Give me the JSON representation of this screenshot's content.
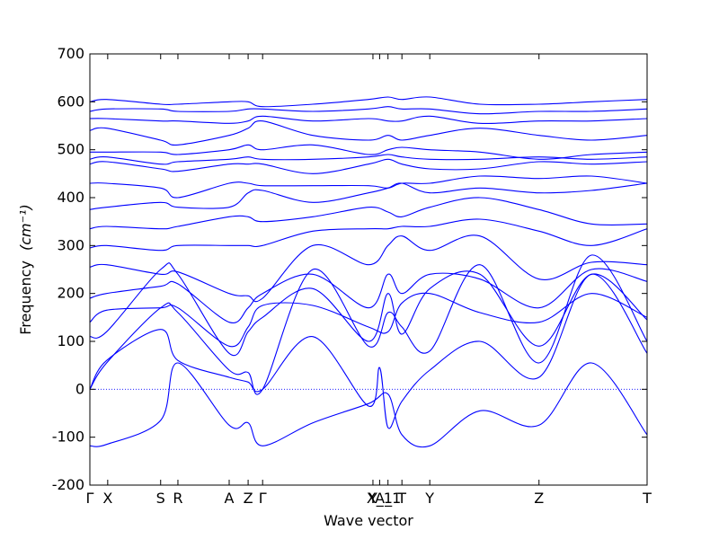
{
  "chart_data": {
    "type": "line",
    "title": "",
    "xlabel": "Wave vector",
    "ylabel": "Frequency",
    "ylabel_unit": "(cm⁻¹)",
    "ylim": [
      -200,
      700
    ],
    "yticks": [
      -200,
      -100,
      0,
      100,
      200,
      300,
      400,
      500,
      600,
      700
    ],
    "xlim": [
      0,
      1
    ],
    "grid": false,
    "legend": "none",
    "zero_line": true,
    "line_color": "#0000ff",
    "high_symmetry_points": [
      {
        "label": "Γ",
        "x": 0.0
      },
      {
        "label": "X",
        "x": 0.032
      },
      {
        "label": "S",
        "x": 0.127
      },
      {
        "label": "R",
        "x": 0.158
      },
      {
        "label": "A",
        "x": 0.25
      },
      {
        "label": "Z",
        "x": 0.284
      },
      {
        "label": "Γ",
        "x": 0.31
      },
      {
        "label": "Y",
        "x": 0.508
      },
      {
        "label": "X_1",
        "x": 0.52
      },
      {
        "label": "A_1",
        "x": 0.535
      },
      {
        "label": "T",
        "x": 0.56
      },
      {
        "label": "Y",
        "x": 0.61
      },
      {
        "label": "Z",
        "x": 0.806
      },
      {
        "label": "T",
        "x": 1.0
      }
    ],
    "series": [
      {
        "x": [
          0,
          0.03,
          0.127,
          0.158,
          0.25,
          0.284,
          0.31,
          0.4,
          0.5,
          0.535,
          0.56,
          0.61,
          0.7,
          0.806,
          0.9,
          1.0
        ],
        "values": [
          -118,
          -115,
          -65,
          55,
          -75,
          -70,
          -118,
          -70,
          -30,
          -10,
          -95,
          -118,
          -45,
          -75,
          55,
          -95
        ]
      },
      {
        "x": [
          0,
          0.03,
          0.127,
          0.158,
          0.25,
          0.284,
          0.31,
          0.4,
          0.5,
          0.52,
          0.535,
          0.56,
          0.61,
          0.7,
          0.806,
          0.9,
          1.0
        ],
        "values": [
          0,
          60,
          125,
          60,
          25,
          15,
          0,
          110,
          -35,
          45,
          -80,
          -25,
          40,
          100,
          25,
          240,
          75
        ]
      },
      {
        "x": [
          0,
          0.03,
          0.127,
          0.158,
          0.25,
          0.284,
          0.31,
          0.4,
          0.5,
          0.535,
          0.56,
          0.61,
          0.7,
          0.806,
          0.9,
          1.0
        ],
        "values": [
          0,
          55,
          170,
          160,
          40,
          35,
          0,
          250,
          90,
          160,
          130,
          80,
          260,
          55,
          280,
          100
        ]
      },
      {
        "x": [
          0,
          0.03,
          0.127,
          0.158,
          0.25,
          0.284,
          0.31,
          0.4,
          0.5,
          0.535,
          0.56,
          0.61,
          0.7,
          0.806,
          0.9,
          1.0
        ],
        "values": [
          110,
          120,
          250,
          240,
          75,
          120,
          150,
          210,
          100,
          200,
          115,
          210,
          240,
          90,
          240,
          145
        ]
      },
      {
        "x": [
          0,
          0.03,
          0.127,
          0.158,
          0.25,
          0.284,
          0.31,
          0.4,
          0.5,
          0.535,
          0.56,
          0.61,
          0.7,
          0.806,
          0.9,
          1.0
        ],
        "values": [
          140,
          165,
          170,
          170,
          90,
          130,
          175,
          175,
          130,
          120,
          180,
          200,
          160,
          140,
          200,
          150
        ]
      },
      {
        "x": [
          0,
          0.03,
          0.127,
          0.158,
          0.25,
          0.284,
          0.31,
          0.4,
          0.5,
          0.535,
          0.56,
          0.61,
          0.7,
          0.806,
          0.9,
          1.0
        ],
        "values": [
          190,
          200,
          215,
          220,
          140,
          170,
          200,
          240,
          170,
          240,
          200,
          240,
          230,
          170,
          250,
          225
        ]
      },
      {
        "x": [
          0,
          0.03,
          0.127,
          0.158,
          0.25,
          0.284,
          0.31,
          0.4,
          0.5,
          0.535,
          0.56,
          0.61,
          0.7,
          0.806,
          0.9,
          1.0
        ],
        "values": [
          255,
          260,
          240,
          245,
          200,
          195,
          190,
          300,
          260,
          300,
          320,
          290,
          320,
          230,
          265,
          260
        ]
      },
      {
        "x": [
          0,
          0.03,
          0.127,
          0.158,
          0.25,
          0.284,
          0.31,
          0.4,
          0.5,
          0.535,
          0.56,
          0.61,
          0.7,
          0.806,
          0.9,
          1.0
        ],
        "values": [
          295,
          300,
          290,
          300,
          300,
          300,
          300,
          330,
          335,
          335,
          340,
          340,
          355,
          330,
          300,
          335
        ]
      },
      {
        "x": [
          0,
          0.03,
          0.127,
          0.158,
          0.25,
          0.284,
          0.31,
          0.4,
          0.5,
          0.535,
          0.56,
          0.61,
          0.7,
          0.806,
          0.9,
          1.0
        ],
        "values": [
          335,
          340,
          335,
          340,
          360,
          360,
          350,
          360,
          380,
          370,
          360,
          380,
          400,
          375,
          345,
          345
        ]
      },
      {
        "x": [
          0,
          0.03,
          0.127,
          0.158,
          0.25,
          0.284,
          0.31,
          0.4,
          0.5,
          0.535,
          0.56,
          0.61,
          0.7,
          0.806,
          0.9,
          1.0
        ],
        "values": [
          375,
          380,
          390,
          380,
          380,
          410,
          415,
          390,
          410,
          420,
          430,
          410,
          420,
          410,
          415,
          430
        ]
      },
      {
        "x": [
          0,
          0.03,
          0.127,
          0.158,
          0.25,
          0.284,
          0.31,
          0.4,
          0.5,
          0.535,
          0.56,
          0.61,
          0.7,
          0.806,
          0.9,
          1.0
        ],
        "values": [
          430,
          430,
          420,
          400,
          430,
          430,
          425,
          425,
          425,
          420,
          430,
          430,
          445,
          440,
          445,
          430
        ]
      },
      {
        "x": [
          0,
          0.03,
          0.127,
          0.158,
          0.25,
          0.284,
          0.31,
          0.4,
          0.5,
          0.535,
          0.56,
          0.61,
          0.7,
          0.806,
          0.9,
          1.0
        ],
        "values": [
          470,
          475,
          460,
          455,
          470,
          470,
          470,
          450,
          470,
          480,
          470,
          460,
          460,
          475,
          470,
          475
        ]
      },
      {
        "x": [
          0,
          0.03,
          0.127,
          0.158,
          0.25,
          0.284,
          0.31,
          0.4,
          0.5,
          0.535,
          0.56,
          0.61,
          0.7,
          0.806,
          0.9,
          1.0
        ],
        "values": [
          480,
          485,
          470,
          475,
          480,
          485,
          480,
          480,
          485,
          490,
          485,
          480,
          480,
          485,
          480,
          485
        ]
      },
      {
        "x": [
          0,
          0.03,
          0.127,
          0.158,
          0.25,
          0.284,
          0.31,
          0.4,
          0.5,
          0.535,
          0.56,
          0.61,
          0.7,
          0.806,
          0.9,
          1.0
        ],
        "values": [
          495,
          495,
          495,
          490,
          500,
          510,
          500,
          510,
          490,
          500,
          505,
          500,
          495,
          480,
          490,
          495
        ]
      },
      {
        "x": [
          0,
          0.03,
          0.127,
          0.158,
          0.25,
          0.284,
          0.31,
          0.4,
          0.5,
          0.535,
          0.56,
          0.61,
          0.7,
          0.806,
          0.9,
          1.0
        ],
        "values": [
          540,
          545,
          520,
          510,
          530,
          545,
          560,
          530,
          520,
          530,
          520,
          530,
          545,
          530,
          520,
          530
        ]
      },
      {
        "x": [
          0,
          0.03,
          0.127,
          0.158,
          0.25,
          0.284,
          0.31,
          0.4,
          0.5,
          0.535,
          0.56,
          0.61,
          0.7,
          0.806,
          0.9,
          1.0
        ],
        "values": [
          565,
          565,
          560,
          560,
          555,
          560,
          570,
          560,
          565,
          560,
          560,
          570,
          555,
          560,
          560,
          565
        ]
      },
      {
        "x": [
          0,
          0.03,
          0.127,
          0.158,
          0.25,
          0.284,
          0.31,
          0.4,
          0.5,
          0.535,
          0.56,
          0.61,
          0.7,
          0.806,
          0.9,
          1.0
        ],
        "values": [
          580,
          585,
          585,
          580,
          580,
          585,
          585,
          580,
          585,
          590,
          585,
          585,
          575,
          580,
          580,
          585
        ]
      },
      {
        "x": [
          0,
          0.03,
          0.127,
          0.158,
          0.25,
          0.284,
          0.31,
          0.4,
          0.5,
          0.535,
          0.56,
          0.61,
          0.7,
          0.806,
          0.9,
          1.0
        ],
        "values": [
          600,
          605,
          595,
          595,
          600,
          600,
          590,
          595,
          605,
          610,
          605,
          610,
          595,
          595,
          600,
          605
        ]
      }
    ]
  }
}
